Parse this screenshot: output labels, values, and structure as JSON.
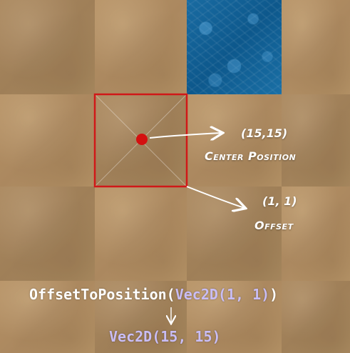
{
  "tiles": {
    "cols": 4,
    "rows": 4,
    "water_cell": [
      2,
      0
    ],
    "selected_cell": [
      1,
      1
    ]
  },
  "colors": {
    "sand": "#a6845c",
    "water": "#0e5c92",
    "selection_border": "#d01818",
    "center_dot": "#d41010",
    "arrow": "#ffffff",
    "code_type": "#c9bdf5",
    "code_text": "#ffffff"
  },
  "annotations": {
    "center_value": "(15,15)",
    "center_label": "Center Position",
    "offset_value": "(1, 1)",
    "offset_label": "Offset"
  },
  "code": {
    "line1": {
      "fn": "OffsetToPosition(",
      "type": "Vec2D",
      "args": "(1, 1)",
      "close": ")"
    },
    "line2": {
      "type": "Vec2D",
      "args": "(15, 15)"
    }
  }
}
